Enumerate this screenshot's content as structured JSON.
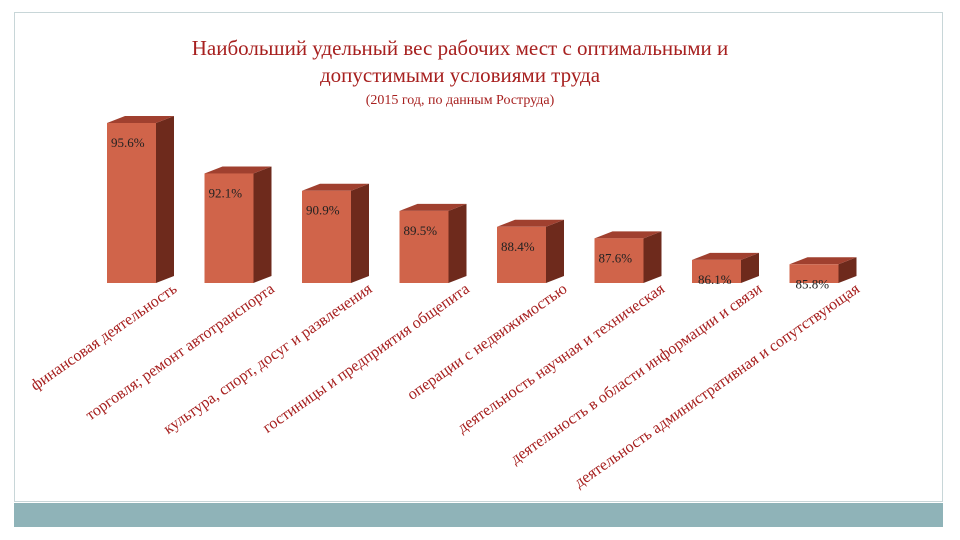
{
  "chart_data": {
    "type": "bar",
    "title": "Наибольший удельный вес рабочих мест с оптимальными и допустимыми условиями труда",
    "title_lines": [
      "Наибольший удельный вес рабочих мест с оптимальными и",
      "допустимыми условиями труда"
    ],
    "subtitle": "(2015 год, по данным Роструда)",
    "categories": [
      "финансовая деятельность",
      "торговля; ремонт автотранспорта",
      "культура, спорт, досуг и развлечения",
      "гостиницы и предприятия общепита",
      "операции с недвижимостью",
      "деятельность научная и техническая",
      "деятельность в области информации и связи",
      "деятельность административная и сопутствующая"
    ],
    "values": [
      95.6,
      92.1,
      90.9,
      89.5,
      88.4,
      87.6,
      86.1,
      85.8
    ],
    "labels": [
      "95.6%",
      "92.1%",
      "90.9%",
      "89.5%",
      "88.4%",
      "87.6%",
      "86.1%",
      "85.8%"
    ],
    "unit": "%",
    "ylim": [
      80,
      100
    ],
    "colors": {
      "front": "#d0644a",
      "side": "#6e2a1c",
      "top": "#a0402f",
      "text": "#a7201f"
    }
  }
}
